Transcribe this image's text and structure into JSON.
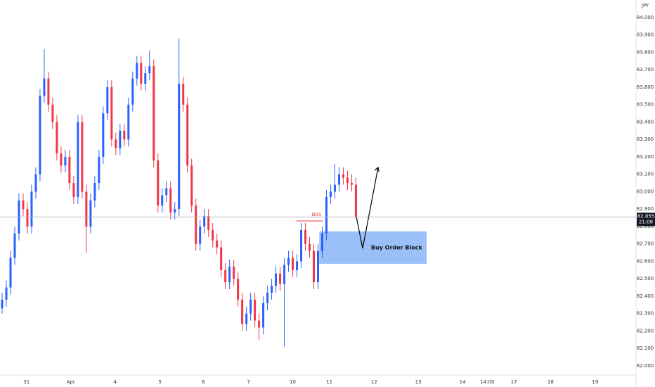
{
  "chart_data": {
    "type": "candlestick",
    "currency": "JPY",
    "up_color": "#2962ff",
    "down_color": "#f23645",
    "open": [
      82.33,
      82.38,
      82.45,
      82.62,
      82.76,
      82.95,
      82.9,
      82.8,
      83.0,
      83.1,
      83.55,
      83.65,
      83.5,
      83.4,
      83.22,
      83.15,
      83.2,
      83.05,
      82.97,
      83.4,
      83.0,
      82.8,
      82.95,
      83.05,
      83.2,
      83.45,
      83.6,
      83.3,
      83.25,
      83.35,
      83.3,
      83.5,
      83.65,
      83.74,
      83.62,
      83.68,
      83.72,
      83.18,
      82.92,
      82.98,
      83.02,
      82.88,
      82.9,
      83.62,
      83.5,
      83.15,
      82.92,
      82.7,
      82.8,
      82.86,
      82.78,
      82.72,
      82.68,
      82.55,
      82.48,
      82.57,
      82.5,
      82.38,
      82.24,
      82.3,
      82.38,
      82.26,
      82.22,
      82.36,
      82.42,
      82.46,
      82.53,
      82.47,
      82.58,
      82.62,
      82.55,
      82.6,
      82.78,
      82.7,
      82.66,
      82.48,
      82.66,
      82.76,
      82.97,
      83.0,
      83.04,
      83.1,
      83.08,
      83.05,
      83.04
    ],
    "high": [
      82.42,
      82.49,
      82.66,
      82.8,
      82.99,
      82.99,
      82.94,
      83.04,
      83.14,
      83.59,
      83.82,
      83.69,
      83.54,
      83.44,
      83.26,
      83.24,
      83.24,
      83.09,
      83.44,
      83.44,
      83.04,
      82.99,
      83.09,
      83.24,
      83.49,
      83.64,
      83.64,
      83.34,
      83.39,
      83.39,
      83.54,
      83.69,
      83.78,
      83.78,
      83.72,
      83.81,
      83.76,
      83.22,
      83.02,
      83.06,
      83.06,
      82.94,
      83.88,
      83.66,
      83.54,
      83.19,
      82.96,
      82.84,
      82.9,
      82.9,
      82.82,
      82.76,
      82.72,
      82.59,
      82.61,
      82.61,
      82.54,
      82.42,
      82.34,
      82.42,
      82.42,
      82.3,
      82.4,
      82.46,
      82.5,
      82.57,
      82.57,
      82.62,
      82.66,
      82.66,
      82.64,
      82.82,
      82.82,
      82.74,
      82.7,
      82.7,
      82.8,
      83.01,
      83.04,
      83.16,
      83.14,
      83.14,
      83.12,
      83.1,
      83.08
    ],
    "low": [
      82.3,
      82.34,
      82.41,
      82.58,
      82.72,
      82.86,
      82.76,
      82.76,
      82.96,
      83.06,
      83.51,
      83.46,
      83.36,
      83.18,
      83.11,
      83.11,
      83.01,
      82.93,
      82.93,
      82.96,
      82.65,
      82.76,
      82.91,
      83.01,
      83.16,
      83.41,
      83.26,
      83.21,
      83.21,
      83.26,
      83.26,
      83.46,
      83.61,
      83.58,
      83.58,
      83.64,
      83.14,
      82.88,
      82.88,
      82.94,
      82.84,
      82.84,
      82.86,
      83.46,
      83.11,
      82.88,
      82.66,
      82.66,
      82.76,
      82.74,
      82.68,
      82.64,
      82.51,
      82.44,
      82.44,
      82.46,
      82.34,
      82.2,
      82.2,
      82.26,
      82.22,
      82.15,
      82.18,
      82.32,
      82.38,
      82.42,
      82.43,
      82.11,
      82.54,
      82.51,
      82.51,
      82.56,
      82.66,
      82.62,
      82.44,
      82.44,
      82.62,
      82.72,
      82.93,
      82.96,
      83.0,
      83.04,
      83.01,
      83.0,
      82.85
    ],
    "close": [
      82.38,
      82.45,
      82.62,
      82.76,
      82.95,
      82.9,
      82.8,
      83.0,
      83.1,
      83.55,
      83.65,
      83.5,
      83.4,
      83.22,
      83.15,
      83.2,
      83.05,
      82.97,
      83.4,
      83.0,
      82.8,
      82.95,
      83.05,
      83.2,
      83.45,
      83.6,
      83.3,
      83.25,
      83.35,
      83.3,
      83.5,
      83.65,
      83.74,
      83.62,
      83.68,
      83.72,
      83.18,
      82.92,
      82.98,
      83.02,
      82.88,
      82.9,
      83.62,
      83.5,
      83.15,
      82.92,
      82.7,
      82.8,
      82.86,
      82.78,
      82.72,
      82.68,
      82.55,
      82.48,
      82.57,
      82.5,
      82.38,
      82.24,
      82.3,
      82.38,
      82.26,
      82.22,
      82.36,
      82.42,
      82.46,
      82.53,
      82.47,
      82.58,
      82.62,
      82.55,
      82.6,
      82.78,
      82.7,
      82.66,
      82.48,
      82.66,
      82.76,
      82.97,
      83.0,
      83.04,
      83.1,
      83.08,
      83.05,
      83.04,
      82.855
    ],
    "xlim": [
      -0.5,
      150.5
    ],
    "xticks": [
      {
        "value": 5.8,
        "label": "31"
      },
      {
        "value": 16.3,
        "label": "Apr"
      },
      {
        "value": 26.8,
        "label": "4"
      },
      {
        "value": 37.5,
        "label": "5"
      },
      {
        "value": 47.8,
        "label": "6"
      },
      {
        "value": 58.5,
        "label": "7"
      },
      {
        "value": 69,
        "label": "10"
      },
      {
        "value": 77.7,
        "label": "11"
      },
      {
        "value": 88.3,
        "label": "12"
      },
      {
        "value": 98.8,
        "label": "13"
      },
      {
        "value": 109.3,
        "label": "14"
      },
      {
        "value": 115.2,
        "label": "14:00"
      },
      {
        "value": 121.5,
        "label": "17"
      },
      {
        "value": 130.2,
        "label": "18"
      },
      {
        "value": 140.8,
        "label": "19"
      }
    ],
    "ylim": [
      81.947,
      84.101
    ],
    "yticks": [
      {
        "value": 82.0,
        "label": "82.000"
      },
      {
        "value": 82.1,
        "label": "82.100"
      },
      {
        "value": 82.2,
        "label": "82.200"
      },
      {
        "value": 82.3,
        "label": "82.300"
      },
      {
        "value": 82.4,
        "label": "82.400"
      },
      {
        "value": 82.5,
        "label": "82.500"
      },
      {
        "value": 82.6,
        "label": "82.600"
      },
      {
        "value": 82.7,
        "label": "82.700"
      },
      {
        "value": 82.8,
        "label": "82.800"
      },
      {
        "value": 82.9,
        "label": "82.900"
      },
      {
        "value": 83.0,
        "label": "83.000"
      },
      {
        "value": 83.1,
        "label": "83.100"
      },
      {
        "value": 83.2,
        "label": "83.200"
      },
      {
        "value": 83.3,
        "label": "83.300"
      },
      {
        "value": 83.4,
        "label": "83.400"
      },
      {
        "value": 83.5,
        "label": "83.500"
      },
      {
        "value": 83.6,
        "label": "83.600"
      },
      {
        "value": 83.7,
        "label": "83.700"
      },
      {
        "value": 83.8,
        "label": "83.800"
      },
      {
        "value": 83.9,
        "label": "83.900"
      },
      {
        "value": 84.0,
        "label": "84.000"
      }
    ],
    "last_price": 82.855,
    "countdown": "21:08",
    "bos": {
      "label": "BoS",
      "value": 82.832,
      "x": [
        69.8,
        76.2
      ]
    },
    "order_block": {
      "label": "Buy Order Block",
      "x": [
        75.3,
        100.8
      ],
      "y": [
        82.586,
        82.772
      ]
    }
  }
}
